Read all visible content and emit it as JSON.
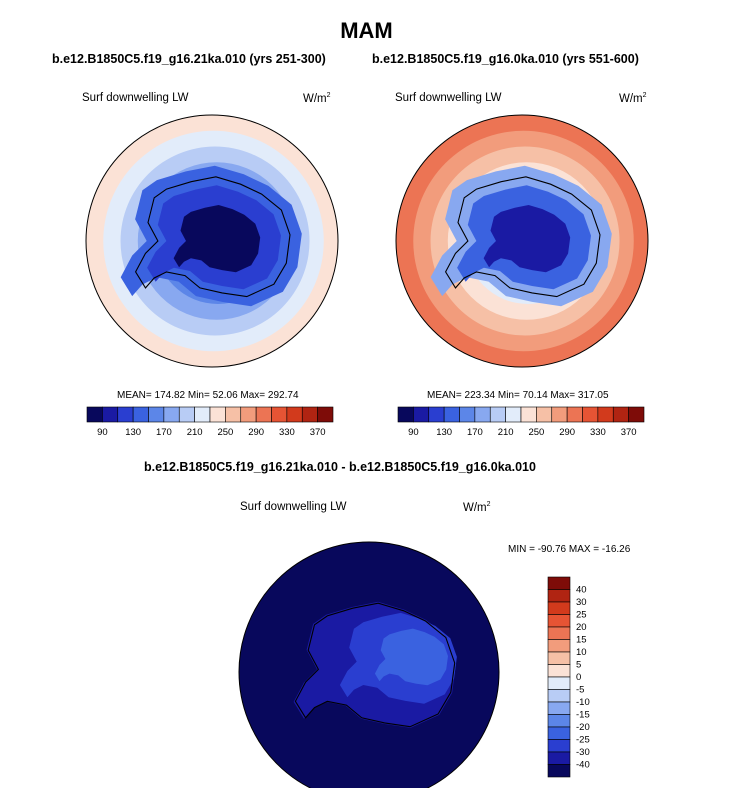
{
  "season_title": "MAM",
  "panels": [
    {
      "case": "b.e12.B1850C5.f19_g16.21ka.010 (yrs 251-300)",
      "variable": "Surf downwelling LW",
      "units_base": "W/m",
      "units_exp": "2",
      "stats": "MEAN= 174.82  Min=  52.06  Max= 292.74"
    },
    {
      "case": "b.e12.B1850C5.f19_g16.0ka.010 (yrs 551-600)",
      "variable": "Surf downwelling LW",
      "units_base": "W/m",
      "units_exp": "2",
      "stats": "MEAN= 223.34  Min=  70.14  Max= 317.05"
    }
  ],
  "diff": {
    "title": "b.e12.B1850C5.f19_g16.21ka.010 - b.e12.B1850C5.f19_g16.0ka.010",
    "variable": "Surf downwelling LW",
    "units_base": "W/m",
    "units_exp": "2",
    "minmax": "MIN = -90.76 MAX = -16.26"
  },
  "colors": {
    "abs_levels": [
      "#08085c",
      "#1a1aa3",
      "#2a3ed0",
      "#3a62e0",
      "#5c86e8",
      "#88a8f0",
      "#b8ccf5",
      "#e2ecfa",
      "#fbe2d6",
      "#f6c0a6",
      "#f29c7c",
      "#ec7454",
      "#e65434",
      "#d23a1c",
      "#b02412",
      "#7e0c08"
    ],
    "diff_levels": [
      "#08085c",
      "#1a1aa3",
      "#2a3ed0",
      "#3a62e0",
      "#5c86e8",
      "#88a8f0",
      "#b8ccf5",
      "#e2ecfa",
      "#fbe2d6",
      "#f6c0a6",
      "#f29c7c",
      "#ec7454",
      "#e65434",
      "#d23a1c",
      "#b02412",
      "#7e0c08"
    ],
    "land_outline": "#000000"
  },
  "chart_data": [
    {
      "type": "heatmap",
      "title": "Surf downwelling LW",
      "projection": "south polar stereographic",
      "units": "W/m2",
      "colorbar": {
        "orientation": "horizontal",
        "tick_labels": [
          "90",
          "130",
          "170",
          "210",
          "250",
          "290",
          "330",
          "370"
        ]
      },
      "stats": {
        "mean": 174.82,
        "min": 52.06,
        "max": 292.74
      },
      "zones_outer_to_center": [
        230,
        210,
        190,
        170,
        150,
        130,
        110,
        70
      ]
    },
    {
      "type": "heatmap",
      "title": "Surf downwelling LW",
      "projection": "south polar stereographic",
      "units": "W/m2",
      "colorbar": {
        "orientation": "horizontal",
        "tick_labels": [
          "90",
          "130",
          "170",
          "210",
          "250",
          "290",
          "330",
          "370"
        ]
      },
      "stats": {
        "mean": 223.34,
        "min": 70.14,
        "max": 317.05
      },
      "zones_outer_to_center": [
        290,
        270,
        250,
        230,
        210,
        170,
        130,
        90
      ]
    },
    {
      "type": "heatmap",
      "title": "Surf downwelling LW",
      "projection": "south polar stereographic",
      "units": "W/m2",
      "colorbar": {
        "orientation": "vertical",
        "tick_labels": [
          "40",
          "30",
          "25",
          "20",
          "15",
          "10",
          "5",
          "0",
          "-5",
          "-10",
          "-15",
          "-20",
          "-25",
          "-30",
          "-40"
        ]
      },
      "stats": {
        "min": -90.76,
        "max": -16.26
      },
      "zones_outer_to_center": [
        -40,
        -40,
        -30,
        -25
      ]
    }
  ]
}
